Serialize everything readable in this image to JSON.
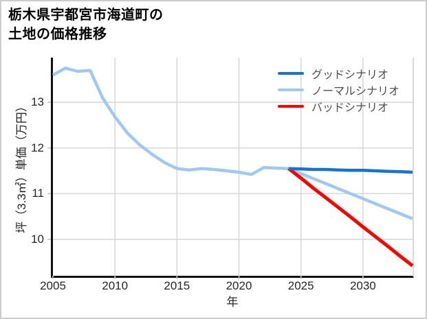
{
  "title": {
    "line1": "栃木県宇都宮市海道町の",
    "line2": "土地の価格推移"
  },
  "colors": {
    "good_scenario": "#1673cf",
    "normal_scenario": "#a0c8f0",
    "bad_scenario": "#ff0000",
    "gridline": "#d8d8d8",
    "spine": "#111111",
    "tick_text": "#262626",
    "legend_text": "#4d4d4d"
  },
  "chart_data": {
    "type": "line",
    "title": "栃木県宇都宮市海道町の土地の価格推移",
    "xlabel": "年",
    "ylabel": "坪（3.3㎡）単価（万円）",
    "xlim": [
      2005,
      2034
    ],
    "ylim": [
      9.2,
      13.98
    ],
    "xticks": [
      2005,
      2010,
      2015,
      2020,
      2025,
      2030
    ],
    "yticks": [
      10,
      11,
      12,
      13
    ],
    "grid": true,
    "legend_position": "upper right",
    "series": [
      {
        "name": "グッドシナリオ",
        "color": "#1673cf",
        "width": 4.5,
        "x": [
          2024,
          2025,
          2026,
          2027,
          2028,
          2029,
          2030,
          2031,
          2032,
          2033,
          2034
        ],
        "values": [
          11.55,
          11.54,
          11.53,
          11.53,
          11.52,
          11.51,
          11.51,
          11.5,
          11.49,
          11.48,
          11.47
        ]
      },
      {
        "name": "ノーマルシナリオ",
        "color": "#a0c8f0",
        "width": 4.5,
        "x": [
          2005,
          2006,
          2007,
          2008,
          2009,
          2010,
          2011,
          2012,
          2013,
          2014,
          2015,
          2016,
          2017,
          2018,
          2019,
          2020,
          2021,
          2022,
          2023,
          2024,
          2025,
          2026,
          2027,
          2028,
          2029,
          2030,
          2031,
          2032,
          2033,
          2034
        ],
        "values": [
          13.6,
          13.75,
          13.68,
          13.7,
          13.1,
          12.68,
          12.33,
          12.07,
          11.86,
          11.68,
          11.55,
          11.52,
          11.55,
          11.53,
          11.5,
          11.47,
          11.42,
          11.57,
          11.56,
          11.55,
          11.44,
          11.33,
          11.22,
          11.11,
          11.0,
          10.89,
          10.78,
          10.67,
          10.56,
          10.45
        ]
      },
      {
        "name": "バッドシナリオ",
        "color": "#ff0000",
        "width": 5,
        "x": [
          2024,
          2025,
          2026,
          2027,
          2028,
          2029,
          2030,
          2031,
          2032,
          2033,
          2034
        ],
        "values": [
          11.55,
          11.34,
          11.12,
          10.91,
          10.7,
          10.49,
          10.27,
          10.06,
          9.85,
          9.63,
          9.42
        ]
      }
    ]
  }
}
